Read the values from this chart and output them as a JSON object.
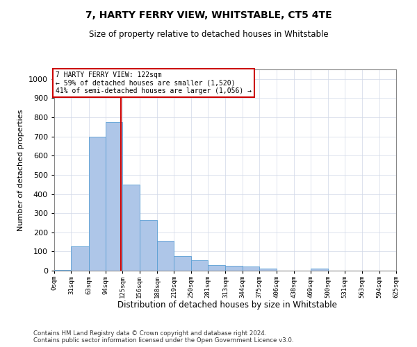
{
  "title": "7, HARTY FERRY VIEW, WHITSTABLE, CT5 4TE",
  "subtitle": "Size of property relative to detached houses in Whitstable",
  "xlabel": "Distribution of detached houses by size in Whitstable",
  "ylabel": "Number of detached properties",
  "property_label": "7 HARTY FERRY VIEW: 122sqm",
  "annotation_line1": "← 59% of detached houses are smaller (1,520)",
  "annotation_line2": "41% of semi-detached houses are larger (1,056) →",
  "footer_line1": "Contains HM Land Registry data © Crown copyright and database right 2024.",
  "footer_line2": "Contains public sector information licensed under the Open Government Licence v3.0.",
  "bin_edges": [
    0,
    31,
    63,
    94,
    125,
    156,
    188,
    219,
    250,
    281,
    313,
    344,
    375,
    406,
    438,
    469,
    500,
    531,
    563,
    594,
    625
  ],
  "bar_heights": [
    2,
    125,
    700,
    775,
    450,
    265,
    155,
    75,
    55,
    30,
    25,
    20,
    10,
    0,
    0,
    10,
    0,
    0,
    0,
    0
  ],
  "bar_color": "#aec6e8",
  "bar_edge_color": "#5a9fd4",
  "vline_x": 122,
  "vline_color": "#cc0000",
  "ylim": [
    0,
    1050
  ],
  "annotation_box_color": "#cc0000",
  "annotation_bg": "#ffffff",
  "background_color": "#ffffff",
  "grid_color": "#d0d8e8"
}
